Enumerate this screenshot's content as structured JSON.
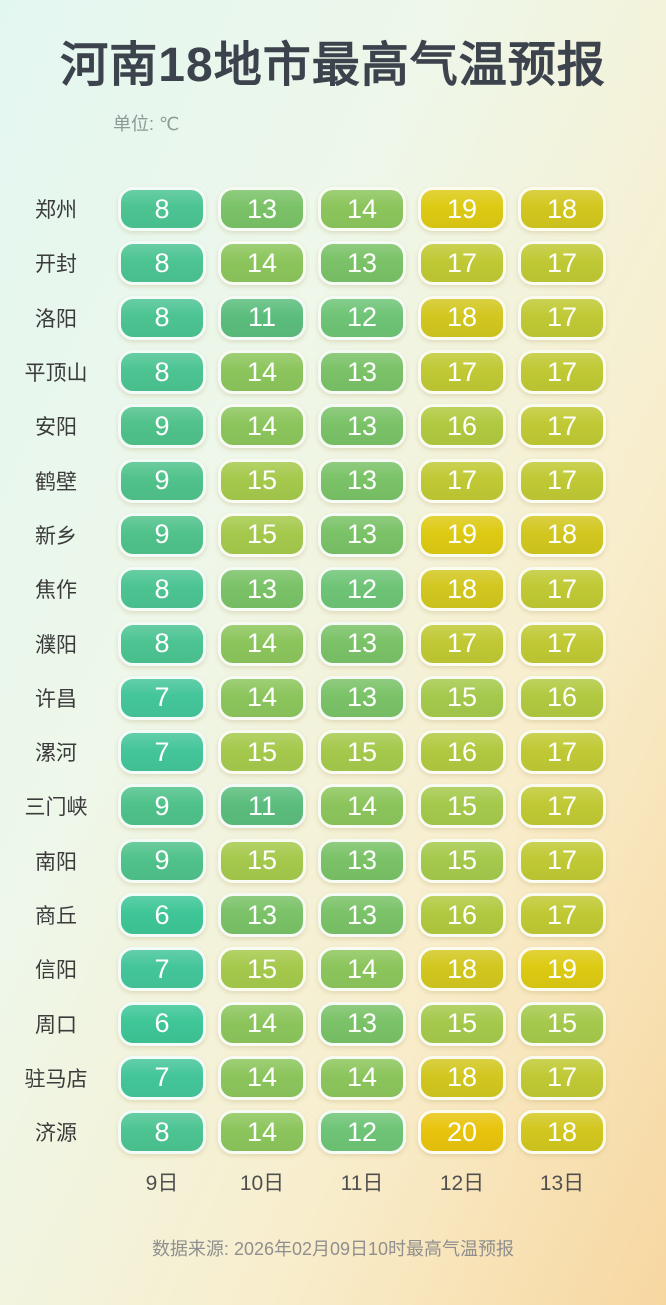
{
  "header": {
    "title": "河南18地市最高气温预报",
    "unit_label": "单位: ℃"
  },
  "footer": {
    "source_label": "数据来源: 2026年02月09日10时最高气温预报"
  },
  "colors": {
    "background_left": "#e3f7f1",
    "background_mid": "#f8eecd",
    "background_right": "#f7d7a0",
    "title_color": "#3c434d",
    "cell_text_color": "#ffffff"
  },
  "chart_data": {
    "type": "heatmap",
    "title": "河南18地市最高气温预报",
    "unit": "℃",
    "columns": [
      "9日",
      "10日",
      "11日",
      "12日",
      "13日"
    ],
    "rows": [
      {
        "city": "郑州",
        "temps": [
          8,
          13,
          14,
          19,
          18
        ]
      },
      {
        "city": "开封",
        "temps": [
          8,
          14,
          13,
          17,
          17
        ]
      },
      {
        "city": "洛阳",
        "temps": [
          8,
          11,
          12,
          18,
          17
        ]
      },
      {
        "city": "平顶山",
        "temps": [
          8,
          14,
          13,
          17,
          17
        ]
      },
      {
        "city": "安阳",
        "temps": [
          9,
          14,
          13,
          16,
          17
        ]
      },
      {
        "city": "鹤壁",
        "temps": [
          9,
          15,
          13,
          17,
          17
        ]
      },
      {
        "city": "新乡",
        "temps": [
          9,
          15,
          13,
          19,
          18
        ]
      },
      {
        "city": "焦作",
        "temps": [
          8,
          13,
          12,
          18,
          17
        ]
      },
      {
        "city": "濮阳",
        "temps": [
          8,
          14,
          13,
          17,
          17
        ]
      },
      {
        "city": "许昌",
        "temps": [
          7,
          14,
          13,
          15,
          16
        ]
      },
      {
        "city": "漯河",
        "temps": [
          7,
          15,
          15,
          16,
          17
        ]
      },
      {
        "city": "三门峡",
        "temps": [
          9,
          11,
          14,
          15,
          17
        ]
      },
      {
        "city": "南阳",
        "temps": [
          9,
          15,
          13,
          15,
          17
        ]
      },
      {
        "city": "商丘",
        "temps": [
          6,
          13,
          13,
          16,
          17
        ]
      },
      {
        "city": "信阳",
        "temps": [
          7,
          15,
          14,
          18,
          19
        ]
      },
      {
        "city": "周口",
        "temps": [
          6,
          14,
          13,
          15,
          15
        ]
      },
      {
        "city": "驻马店",
        "temps": [
          7,
          14,
          14,
          18,
          17
        ]
      },
      {
        "city": "济源",
        "temps": [
          8,
          14,
          12,
          20,
          18
        ]
      }
    ],
    "value_color_scale": {
      "6": "#3ec697",
      "7": "#44c59a",
      "8": "#4cc492",
      "9": "#50c28b",
      "11": "#5bbd7d",
      "12": "#6ec476",
      "13": "#7ac267",
      "14": "#8cc55c",
      "15": "#a5c94c",
      "16": "#b1c940",
      "17": "#c0c934",
      "18": "#d2c71f",
      "19": "#ddca13",
      "20": "#e8c40d"
    },
    "source": "数据来源: 2026年02月09日10时最高气温预报"
  }
}
